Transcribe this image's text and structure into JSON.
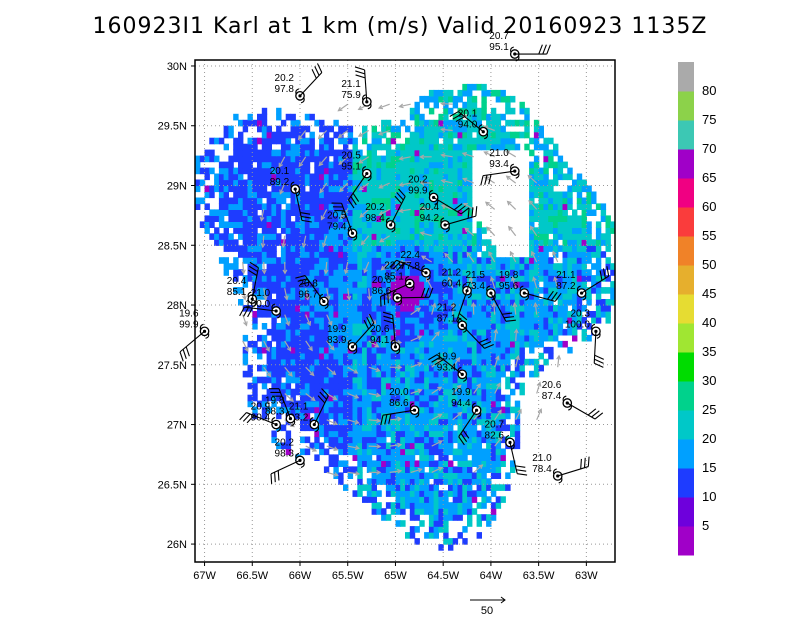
{
  "title": "160923I1 Karl at 1 km (m/s) Valid 20160923 1135Z",
  "chart_data": {
    "type": "heatmap",
    "title": "160923I1 Karl at 1 km (m/s) Valid 20160923 1135Z",
    "xlim": [
      -67.1,
      -62.7
    ],
    "ylim": [
      25.85,
      30.05
    ],
    "x_ticks": [
      -67,
      -66.5,
      -66,
      -65.5,
      -65,
      -64.5,
      -64,
      -63.5,
      -63
    ],
    "x_tick_labels": [
      "67W",
      "66.5W",
      "66W",
      "65.5W",
      "65W",
      "64.5W",
      "64W",
      "63.5W",
      "63W"
    ],
    "y_ticks": [
      26,
      26.5,
      27,
      27.5,
      28,
      28.5,
      29,
      29.5,
      30
    ],
    "y_tick_labels": [
      "26N",
      "26.5N",
      "27N",
      "27.5N",
      "28N",
      "28.5N",
      "29N",
      "29.5N",
      "30N"
    ],
    "grid": true,
    "colorbar": {
      "labels": [
        "5",
        "10",
        "15",
        "20",
        "25",
        "30",
        "35",
        "40",
        "45",
        "50",
        "55",
        "60",
        "65",
        "70",
        "75",
        "80"
      ],
      "colors": [
        "#a000c8",
        "#6e00dc",
        "#1e3cff",
        "#00a0ff",
        "#00c8c8",
        "#00d28c",
        "#00dc00",
        "#a0e632",
        "#e6dc32",
        "#e6af2d",
        "#f08228",
        "#fa3c3c",
        "#f00082",
        "#a000c8",
        "#3cc8b4",
        "#8cd24a",
        "#aaaaaa"
      ]
    },
    "reference_vector": {
      "label": "50"
    },
    "stations": [
      {
        "lon": -63.75,
        "lat": 30.1,
        "v1": "20.7",
        "v2": "95.1"
      },
      {
        "lon": -66.0,
        "lat": 29.75,
        "v1": "20.2",
        "v2": "97.8"
      },
      {
        "lon": -65.3,
        "lat": 29.7,
        "v1": "21.1",
        "v2": "75.9"
      },
      {
        "lon": -64.08,
        "lat": 29.45,
        "v1": "20.1",
        "v2": "94.0"
      },
      {
        "lon": -63.75,
        "lat": 29.12,
        "v1": "21.0",
        "v2": "93.4"
      },
      {
        "lon": -65.3,
        "lat": 29.1,
        "v1": "20.5",
        "v2": "95.1"
      },
      {
        "lon": -66.05,
        "lat": 28.97,
        "v1": "20.1",
        "v2": "89.2"
      },
      {
        "lon": -64.6,
        "lat": 28.9,
        "v1": "20.2",
        "v2": "99.9"
      },
      {
        "lon": -64.48,
        "lat": 28.67,
        "v1": "20.4",
        "v2": "94.2"
      },
      {
        "lon": -65.05,
        "lat": 28.67,
        "v1": "20.2",
        "v2": "98.4"
      },
      {
        "lon": -65.45,
        "lat": 28.6,
        "v1": "20.5",
        "v2": "79.4"
      },
      {
        "lon": -64.68,
        "lat": 28.27,
        "v1": "22.4",
        "v2": "77.8"
      },
      {
        "lon": -64.85,
        "lat": 28.18,
        "v1": "22.9",
        "v2": "85.1"
      },
      {
        "lon": -64.25,
        "lat": 28.12,
        "v1": "21.2",
        "v2": "60.4"
      },
      {
        "lon": -64.0,
        "lat": 28.1,
        "v1": "21.5",
        "v2": "73.4"
      },
      {
        "lon": -63.65,
        "lat": 28.1,
        "v1": "19.8",
        "v2": "95.6"
      },
      {
        "lon": -63.05,
        "lat": 28.1,
        "v1": "21.1",
        "v2": "87.2"
      },
      {
        "lon": -66.5,
        "lat": 28.05,
        "v1": "20.4",
        "v2": "85.1"
      },
      {
        "lon": -65.75,
        "lat": 28.03,
        "v1": "20.8",
        "v2": "96.7"
      },
      {
        "lon": -66.25,
        "lat": 27.95,
        "v1": "21.0",
        "v2": "100.0"
      },
      {
        "lon": -67.0,
        "lat": 27.78,
        "v1": "19.6",
        "v2": "99.9"
      },
      {
        "lon": -62.9,
        "lat": 27.78,
        "v1": "20.3",
        "v2": "100.0"
      },
      {
        "lon": -64.3,
        "lat": 27.83,
        "v1": "21.2",
        "v2": "87.1"
      },
      {
        "lon": -64.98,
        "lat": 28.06,
        "v1": "20.6",
        "v2": "86.6"
      },
      {
        "lon": -65.45,
        "lat": 27.65,
        "v1": "19.9",
        "v2": "83.9"
      },
      {
        "lon": -65.0,
        "lat": 27.65,
        "v1": "20.6",
        "v2": "94.1"
      },
      {
        "lon": -64.3,
        "lat": 27.42,
        "v1": "19.9",
        "v2": "93.4"
      },
      {
        "lon": -64.8,
        "lat": 27.12,
        "v1": "20.0",
        "v2": "86.6"
      },
      {
        "lon": -64.15,
        "lat": 27.12,
        "v1": "19.9",
        "v2": "94.4"
      },
      {
        "lon": -63.8,
        "lat": 26.85,
        "v1": "20.7",
        "v2": "82.6"
      },
      {
        "lon": -63.2,
        "lat": 27.18,
        "v1": "20.6",
        "v2": "87.4"
      },
      {
        "lon": -63.3,
        "lat": 26.57,
        "v1": "21.0",
        "v2": "78.4"
      },
      {
        "lon": -65.85,
        "lat": 27.0,
        "v1": "21.1",
        "v2": "83.2"
      },
      {
        "lon": -66.1,
        "lat": 27.05,
        "v1": "19.8",
        "v2": "88.3"
      },
      {
        "lon": -66.25,
        "lat": 27.0,
        "v1": "20.9",
        "v2": "90.4"
      },
      {
        "lon": -66.0,
        "lat": 26.7,
        "v1": "20.2",
        "v2": "98.3"
      }
    ]
  }
}
